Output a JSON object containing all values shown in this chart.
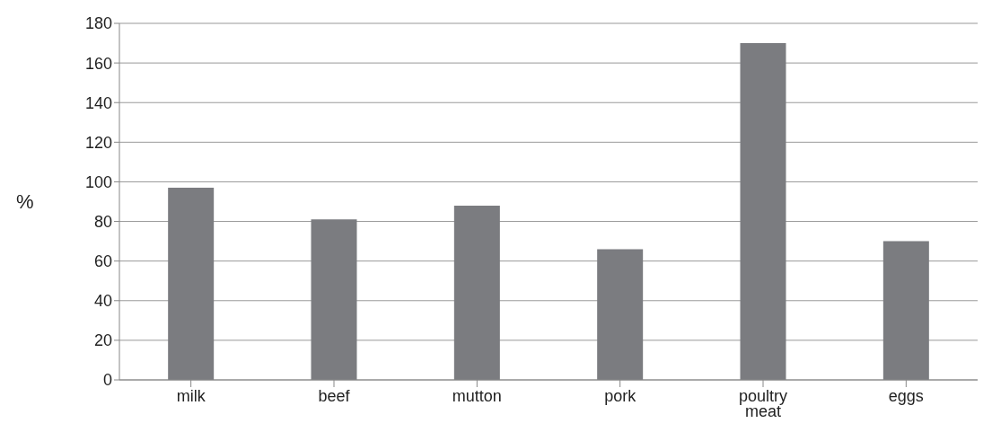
{
  "chart_data": {
    "type": "bar",
    "categories": [
      "milk",
      "beef",
      "mutton",
      "pork",
      "poultry meat",
      "eggs"
    ],
    "values": [
      97,
      81,
      88,
      66,
      170,
      70
    ],
    "color": "#7b7c80",
    "ylabel": "%",
    "ylim": [
      0,
      180
    ],
    "yticks": [
      0,
      20,
      40,
      60,
      80,
      100,
      120,
      140,
      160,
      180
    ],
    "grid": "y"
  }
}
